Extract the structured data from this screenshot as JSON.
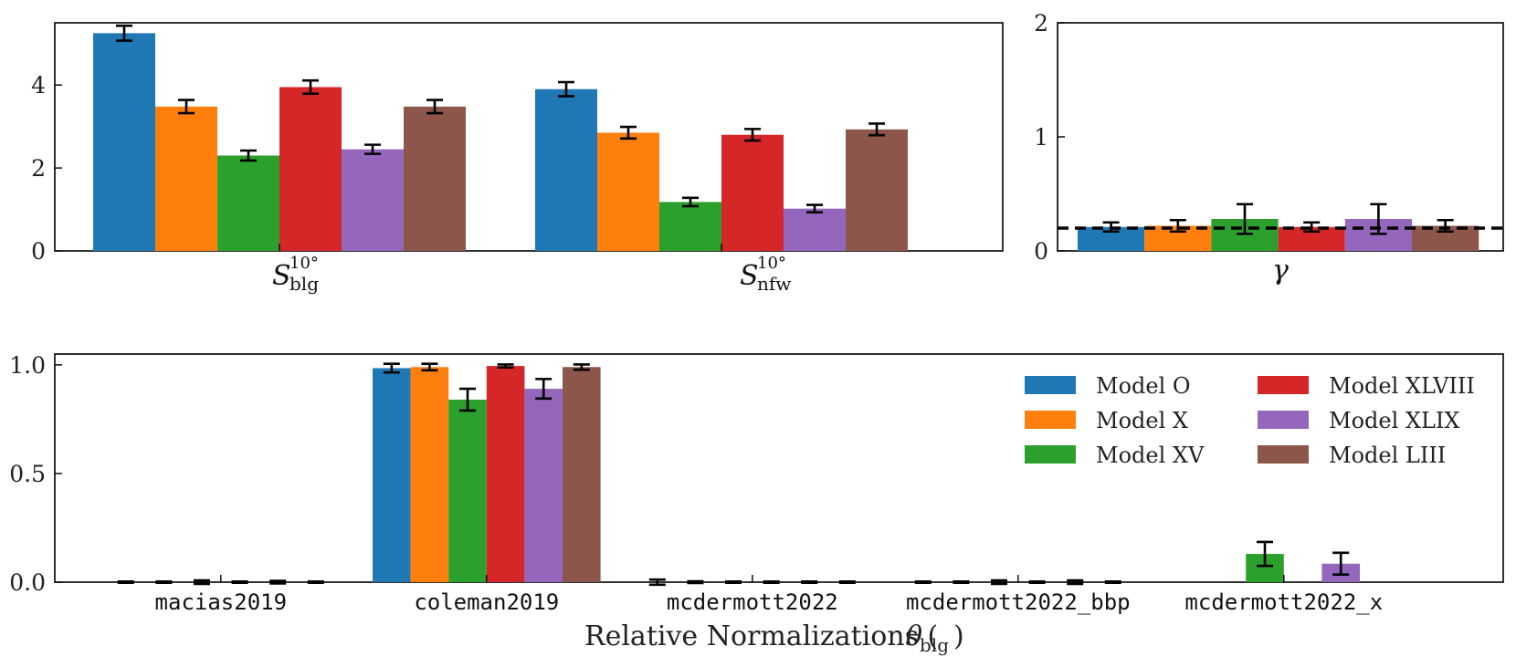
{
  "colors": {
    "Model O": "#1f77b4",
    "Model X": "#ff7f0e",
    "Model XV": "#2ca02c",
    "Model XLVIII": "#d62728",
    "Model XLIX": "#9467bd",
    "Model LIII": "#8c564b",
    "errorbar": "#000000",
    "axis": "#000000"
  },
  "chart_data": [
    {
      "type": "bar",
      "title": "",
      "categories": [
        "S_blg^10°",
        "S_nfw^10°"
      ],
      "ylim": [
        0,
        5.5
      ],
      "yticks": [
        "0",
        "2",
        "4"
      ],
      "series": [
        {
          "name": "Model O",
          "values": [
            5.25,
            3.9
          ],
          "err": [
            0.18,
            0.17
          ]
        },
        {
          "name": "Model X",
          "values": [
            3.48,
            2.85
          ],
          "err": [
            0.16,
            0.14
          ]
        },
        {
          "name": "Model XV",
          "values": [
            2.3,
            1.18
          ],
          "err": [
            0.12,
            0.1
          ]
        },
        {
          "name": "Model XLVIII",
          "values": [
            3.95,
            2.8
          ],
          "err": [
            0.16,
            0.14
          ]
        },
        {
          "name": "Model XLIX",
          "values": [
            2.45,
            1.02
          ],
          "err": [
            0.11,
            0.09
          ]
        },
        {
          "name": "Model LIII",
          "values": [
            3.48,
            2.93
          ],
          "err": [
            0.16,
            0.14
          ]
        }
      ]
    },
    {
      "type": "bar",
      "categories": [
        "γ"
      ],
      "ylim": [
        0,
        2
      ],
      "yticks": [
        "0",
        "1",
        "2"
      ],
      "reference_line": 0.2,
      "series": [
        {
          "name": "Model O",
          "values": [
            0.21
          ],
          "err": [
            0.04
          ]
        },
        {
          "name": "Model X",
          "values": [
            0.22
          ],
          "err": [
            0.05
          ]
        },
        {
          "name": "Model XV",
          "values": [
            0.28
          ],
          "err": [
            0.13
          ]
        },
        {
          "name": "Model XLVIII",
          "values": [
            0.21
          ],
          "err": [
            0.04
          ]
        },
        {
          "name": "Model XLIX",
          "values": [
            0.28
          ],
          "err": [
            0.13
          ]
        },
        {
          "name": "Model LIII",
          "values": [
            0.22
          ],
          "err": [
            0.05
          ]
        }
      ]
    },
    {
      "type": "bar",
      "categories": [
        "macias2019",
        "coleman2019",
        "mcdermott2022",
        "mcdermott2022_bbp",
        "mcdermott2022_x"
      ],
      "xlabel": "Relative Normalizations (θ_blg)",
      "ylim": [
        0,
        1.05
      ],
      "yticks": [
        "0.0",
        "0.5",
        "1.0"
      ],
      "legend": "top-right",
      "series": [
        {
          "name": "Model O",
          "values": [
            0.0,
            0.985,
            0.0,
            0.0,
            0.0
          ],
          "err": [
            0.003,
            0.02,
            0.012,
            0.003,
            0.0
          ]
        },
        {
          "name": "Model X",
          "values": [
            0.0,
            0.99,
            0.0,
            0.0,
            0.0
          ],
          "err": [
            0.003,
            0.015,
            0.004,
            0.003,
            0.0
          ]
        },
        {
          "name": "Model XV",
          "values": [
            0.0,
            0.84,
            0.0,
            0.0,
            0.13
          ],
          "err": [
            0.008,
            0.05,
            0.003,
            0.008,
            0.055
          ]
        },
        {
          "name": "Model XLVIII",
          "values": [
            0.0,
            0.995,
            0.0,
            0.0,
            0.0
          ],
          "err": [
            0.003,
            0.007,
            0.003,
            0.003,
            0.0
          ]
        },
        {
          "name": "Model XLIX",
          "values": [
            0.0,
            0.89,
            0.0,
            0.0,
            0.085
          ],
          "err": [
            0.006,
            0.045,
            0.003,
            0.008,
            0.05
          ]
        },
        {
          "name": "Model LIII",
          "values": [
            0.0,
            0.99,
            0.0,
            0.0,
            0.0
          ],
          "err": [
            0.003,
            0.012,
            0.003,
            0.003,
            0.0
          ]
        }
      ]
    }
  ]
}
